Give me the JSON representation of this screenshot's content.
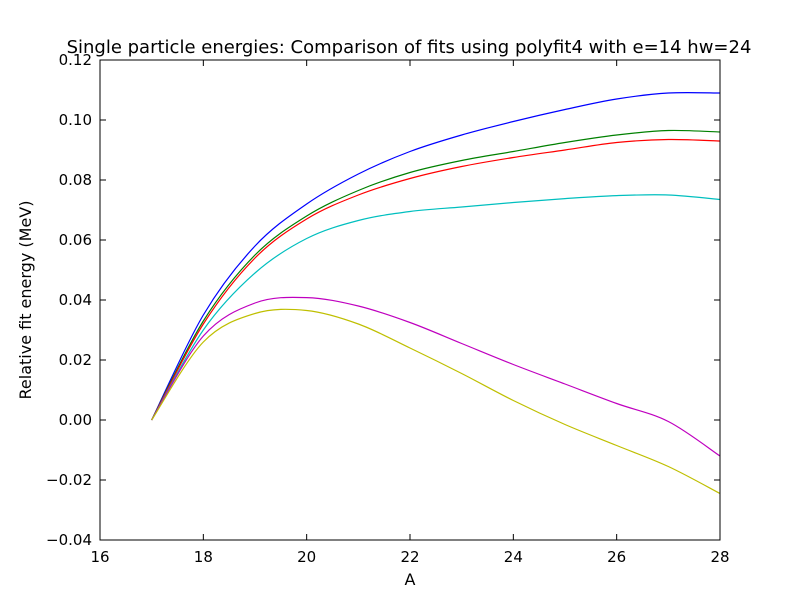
{
  "chart_data": {
    "type": "line",
    "title": "Single particle energies: Comparison of fits using polyfit4 with e=14 hw=24",
    "xlabel": "A",
    "ylabel": "Relative fit energy (MeV)",
    "xlim": [
      16,
      28
    ],
    "ylim": [
      -0.04,
      0.12
    ],
    "xticks": [
      16,
      18,
      20,
      22,
      24,
      26,
      28
    ],
    "xtick_labels": [
      "16",
      "18",
      "20",
      "22",
      "24",
      "26",
      "28"
    ],
    "yticks": [
      -0.04,
      -0.02,
      0.0,
      0.02,
      0.04,
      0.06,
      0.08,
      0.1,
      0.12
    ],
    "ytick_labels": [
      "−0.04",
      "−0.02",
      "0.00",
      "0.02",
      "0.04",
      "0.06",
      "0.08",
      "0.10",
      "0.12"
    ],
    "grid": false,
    "legend": "none",
    "series": [
      {
        "color": "#0000ff",
        "x": [
          17,
          18,
          19,
          20,
          21,
          22,
          23,
          24,
          25,
          26,
          27,
          28
        ],
        "values": [
          0.0,
          0.035,
          0.058,
          0.072,
          0.082,
          0.0895,
          0.095,
          0.0995,
          0.1035,
          0.107,
          0.109,
          0.109
        ]
      },
      {
        "color": "#008000",
        "x": [
          17,
          18,
          19,
          20,
          21,
          22,
          23,
          24,
          25,
          26,
          27,
          28
        ],
        "values": [
          0.0,
          0.033,
          0.055,
          0.068,
          0.0765,
          0.0825,
          0.0865,
          0.0895,
          0.0925,
          0.095,
          0.0965,
          0.096
        ]
      },
      {
        "color": "#ff0000",
        "x": [
          17,
          18,
          19,
          20,
          21,
          22,
          23,
          24,
          25,
          26,
          27,
          28
        ],
        "values": [
          0.0,
          0.032,
          0.054,
          0.067,
          0.075,
          0.0805,
          0.0845,
          0.0875,
          0.09,
          0.0925,
          0.0935,
          0.093
        ]
      },
      {
        "color": "#00bfbf",
        "x": [
          17,
          18,
          19,
          20,
          21,
          22,
          23,
          24,
          25,
          26,
          27,
          28
        ],
        "values": [
          0.0,
          0.03,
          0.049,
          0.0605,
          0.0665,
          0.0695,
          0.071,
          0.0725,
          0.0738,
          0.0748,
          0.075,
          0.0735
        ]
      },
      {
        "color": "#bf00bf",
        "x": [
          17,
          18,
          19,
          20,
          21,
          22,
          23,
          24,
          25,
          26,
          27,
          28
        ],
        "values": [
          0.0,
          0.028,
          0.039,
          0.0408,
          0.038,
          0.0325,
          0.0255,
          0.0185,
          0.012,
          0.0055,
          -0.0005,
          -0.012
        ]
      },
      {
        "color": "#bfbf00",
        "x": [
          17,
          18,
          19,
          20,
          21,
          22,
          23,
          24,
          25,
          26,
          27,
          28
        ],
        "values": [
          0.0,
          0.026,
          0.0355,
          0.0365,
          0.032,
          0.024,
          0.0155,
          0.0065,
          -0.0015,
          -0.0085,
          -0.0155,
          -0.0245
        ]
      }
    ]
  }
}
